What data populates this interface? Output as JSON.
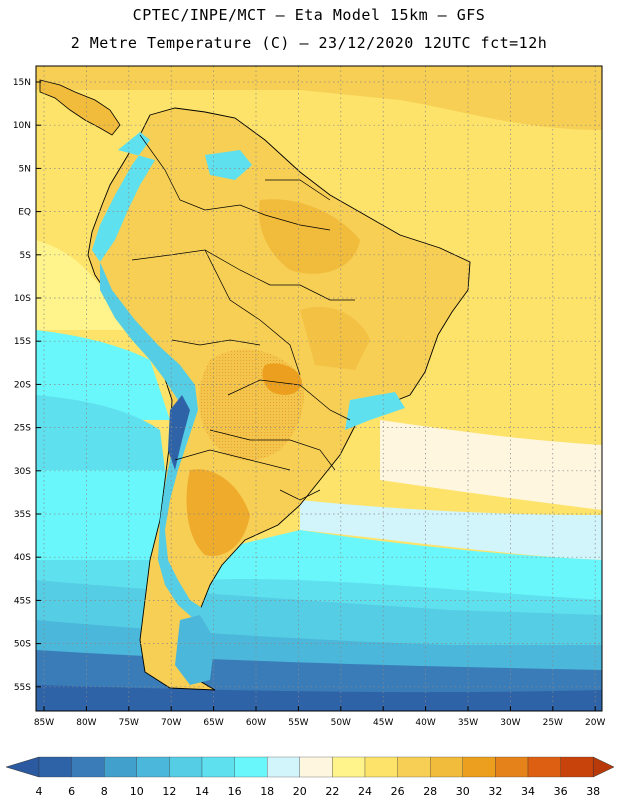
{
  "header": {
    "line1": "CPTEC/INPE/MCT –  Eta Model 15km – GFS",
    "line2": "2 Metre Temperature (C) – 23/12/2020 12UTC fct=12h"
  },
  "axes": {
    "lat_labels": [
      "15N",
      "10N",
      "5N",
      "EQ",
      "5S",
      "10S",
      "15S",
      "20S",
      "25S",
      "30S",
      "35S",
      "40S",
      "45S",
      "50S",
      "55S"
    ],
    "lon_labels": [
      "85W",
      "80W",
      "75W",
      "70W",
      "65W",
      "60W",
      "55W",
      "50W",
      "45W",
      "40W",
      "35W",
      "30W",
      "25W",
      "20W"
    ]
  },
  "colorbar": {
    "labels": [
      "4",
      "6",
      "8",
      "10",
      "12",
      "14",
      "16",
      "18",
      "20",
      "22",
      "24",
      "26",
      "28",
      "30",
      "32",
      "34",
      "36",
      "38"
    ],
    "colors": [
      "#2f63a8",
      "#3a7cb8",
      "#41a0cc",
      "#4bb7da",
      "#55cde4",
      "#5fe0ee",
      "#6af7fb",
      "#d2f5fc",
      "#fff6e0",
      "#fff38c",
      "#fde36a",
      "#f7cf55",
      "#f1bb3c",
      "#ec9f1e",
      "#e6821a",
      "#dc5f12",
      "#c8420c"
    ],
    "low_color": "#2c5aa0",
    "high_color": "#b83a0a"
  }
}
